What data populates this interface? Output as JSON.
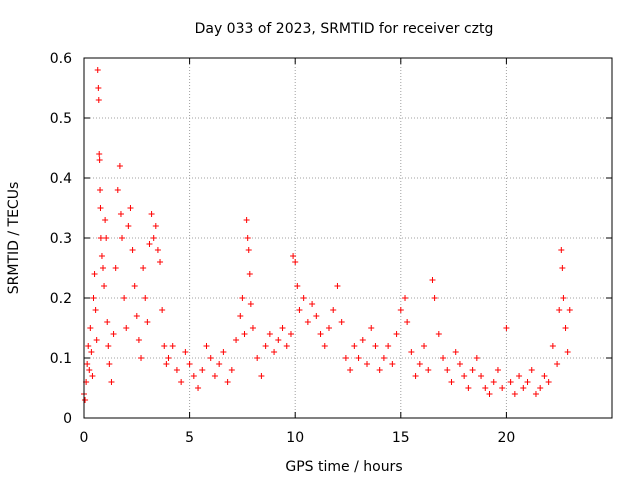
{
  "chart_data": {
    "type": "scatter",
    "title": "Day 033 of 2023, SRMTID for receiver cztg",
    "xlabel": "GPS time / hours",
    "ylabel": "SRMTID / TECUs",
    "xlim": [
      0,
      25
    ],
    "ylim": [
      0,
      0.6
    ],
    "xticks": [
      "0",
      "5",
      "10",
      "15",
      "20"
    ],
    "yticks": [
      "0",
      "0.1",
      "0.2",
      "0.3",
      "0.4",
      "0.5",
      "0.6"
    ],
    "grid": true,
    "marker": "+",
    "color": "#ff0000",
    "series": [
      {
        "name": "SRMTID",
        "points": [
          [
            0.0,
            0.04
          ],
          [
            0.05,
            0.03
          ],
          [
            0.1,
            0.06
          ],
          [
            0.15,
            0.09
          ],
          [
            0.2,
            0.12
          ],
          [
            0.25,
            0.08
          ],
          [
            0.3,
            0.15
          ],
          [
            0.35,
            0.11
          ],
          [
            0.4,
            0.07
          ],
          [
            0.45,
            0.2
          ],
          [
            0.5,
            0.24
          ],
          [
            0.55,
            0.18
          ],
          [
            0.6,
            0.13
          ],
          [
            0.65,
            0.58
          ],
          [
            0.68,
            0.55
          ],
          [
            0.7,
            0.53
          ],
          [
            0.72,
            0.44
          ],
          [
            0.74,
            0.43
          ],
          [
            0.76,
            0.38
          ],
          [
            0.78,
            0.35
          ],
          [
            0.8,
            0.3
          ],
          [
            0.85,
            0.27
          ],
          [
            0.9,
            0.25
          ],
          [
            0.95,
            0.22
          ],
          [
            1.0,
            0.33
          ],
          [
            1.05,
            0.3
          ],
          [
            1.1,
            0.16
          ],
          [
            1.15,
            0.12
          ],
          [
            1.2,
            0.09
          ],
          [
            1.3,
            0.06
          ],
          [
            1.4,
            0.14
          ],
          [
            1.5,
            0.25
          ],
          [
            1.6,
            0.38
          ],
          [
            1.7,
            0.42
          ],
          [
            1.75,
            0.34
          ],
          [
            1.8,
            0.3
          ],
          [
            1.9,
            0.2
          ],
          [
            2.0,
            0.15
          ],
          [
            2.1,
            0.32
          ],
          [
            2.2,
            0.35
          ],
          [
            2.3,
            0.28
          ],
          [
            2.4,
            0.22
          ],
          [
            2.5,
            0.17
          ],
          [
            2.6,
            0.13
          ],
          [
            2.7,
            0.1
          ],
          [
            2.8,
            0.25
          ],
          [
            2.9,
            0.2
          ],
          [
            3.0,
            0.16
          ],
          [
            3.1,
            0.29
          ],
          [
            3.2,
            0.34
          ],
          [
            3.3,
            0.3
          ],
          [
            3.4,
            0.32
          ],
          [
            3.5,
            0.28
          ],
          [
            3.6,
            0.26
          ],
          [
            3.7,
            0.18
          ],
          [
            3.8,
            0.12
          ],
          [
            3.9,
            0.09
          ],
          [
            4.0,
            0.1
          ],
          [
            4.2,
            0.12
          ],
          [
            4.4,
            0.08
          ],
          [
            4.6,
            0.06
          ],
          [
            4.8,
            0.11
          ],
          [
            5.0,
            0.09
          ],
          [
            5.2,
            0.07
          ],
          [
            5.4,
            0.05
          ],
          [
            5.6,
            0.08
          ],
          [
            5.8,
            0.12
          ],
          [
            6.0,
            0.1
          ],
          [
            6.2,
            0.07
          ],
          [
            6.4,
            0.09
          ],
          [
            6.6,
            0.11
          ],
          [
            6.8,
            0.06
          ],
          [
            7.0,
            0.08
          ],
          [
            7.2,
            0.13
          ],
          [
            7.4,
            0.17
          ],
          [
            7.5,
            0.2
          ],
          [
            7.6,
            0.14
          ],
          [
            7.7,
            0.33
          ],
          [
            7.75,
            0.3
          ],
          [
            7.8,
            0.28
          ],
          [
            7.85,
            0.24
          ],
          [
            7.9,
            0.19
          ],
          [
            8.0,
            0.15
          ],
          [
            8.2,
            0.1
          ],
          [
            8.4,
            0.07
          ],
          [
            8.6,
            0.12
          ],
          [
            8.8,
            0.14
          ],
          [
            9.0,
            0.11
          ],
          [
            9.2,
            0.13
          ],
          [
            9.4,
            0.15
          ],
          [
            9.6,
            0.12
          ],
          [
            9.8,
            0.14
          ],
          [
            9.9,
            0.27
          ],
          [
            10.0,
            0.26
          ],
          [
            10.1,
            0.22
          ],
          [
            10.2,
            0.18
          ],
          [
            10.4,
            0.2
          ],
          [
            10.6,
            0.16
          ],
          [
            10.8,
            0.19
          ],
          [
            11.0,
            0.17
          ],
          [
            11.2,
            0.14
          ],
          [
            11.4,
            0.12
          ],
          [
            11.6,
            0.15
          ],
          [
            11.8,
            0.18
          ],
          [
            12.0,
            0.22
          ],
          [
            12.2,
            0.16
          ],
          [
            12.4,
            0.1
          ],
          [
            12.6,
            0.08
          ],
          [
            12.8,
            0.12
          ],
          [
            13.0,
            0.1
          ],
          [
            13.2,
            0.13
          ],
          [
            13.4,
            0.09
          ],
          [
            13.6,
            0.15
          ],
          [
            13.8,
            0.12
          ],
          [
            14.0,
            0.08
          ],
          [
            14.2,
            0.1
          ],
          [
            14.4,
            0.12
          ],
          [
            14.6,
            0.09
          ],
          [
            14.8,
            0.14
          ],
          [
            15.0,
            0.18
          ],
          [
            15.2,
            0.2
          ],
          [
            15.3,
            0.16
          ],
          [
            15.5,
            0.11
          ],
          [
            15.7,
            0.07
          ],
          [
            15.9,
            0.09
          ],
          [
            16.1,
            0.12
          ],
          [
            16.3,
            0.08
          ],
          [
            16.5,
            0.23
          ],
          [
            16.6,
            0.2
          ],
          [
            16.8,
            0.14
          ],
          [
            17.0,
            0.1
          ],
          [
            17.2,
            0.08
          ],
          [
            17.4,
            0.06
          ],
          [
            17.6,
            0.11
          ],
          [
            17.8,
            0.09
          ],
          [
            18.0,
            0.07
          ],
          [
            18.2,
            0.05
          ],
          [
            18.4,
            0.08
          ],
          [
            18.6,
            0.1
          ],
          [
            18.8,
            0.07
          ],
          [
            19.0,
            0.05
          ],
          [
            19.2,
            0.04
          ],
          [
            19.4,
            0.06
          ],
          [
            19.6,
            0.08
          ],
          [
            19.8,
            0.05
          ],
          [
            20.0,
            0.15
          ],
          [
            20.2,
            0.06
          ],
          [
            20.4,
            0.04
          ],
          [
            20.6,
            0.07
          ],
          [
            20.8,
            0.05
          ],
          [
            21.0,
            0.06
          ],
          [
            21.2,
            0.08
          ],
          [
            21.4,
            0.04
          ],
          [
            21.6,
            0.05
          ],
          [
            21.8,
            0.07
          ],
          [
            22.0,
            0.06
          ],
          [
            22.2,
            0.12
          ],
          [
            22.4,
            0.09
          ],
          [
            22.5,
            0.18
          ],
          [
            22.6,
            0.28
          ],
          [
            22.65,
            0.25
          ],
          [
            22.7,
            0.2
          ],
          [
            22.8,
            0.15
          ],
          [
            22.9,
            0.11
          ],
          [
            23.0,
            0.18
          ]
        ]
      }
    ]
  }
}
